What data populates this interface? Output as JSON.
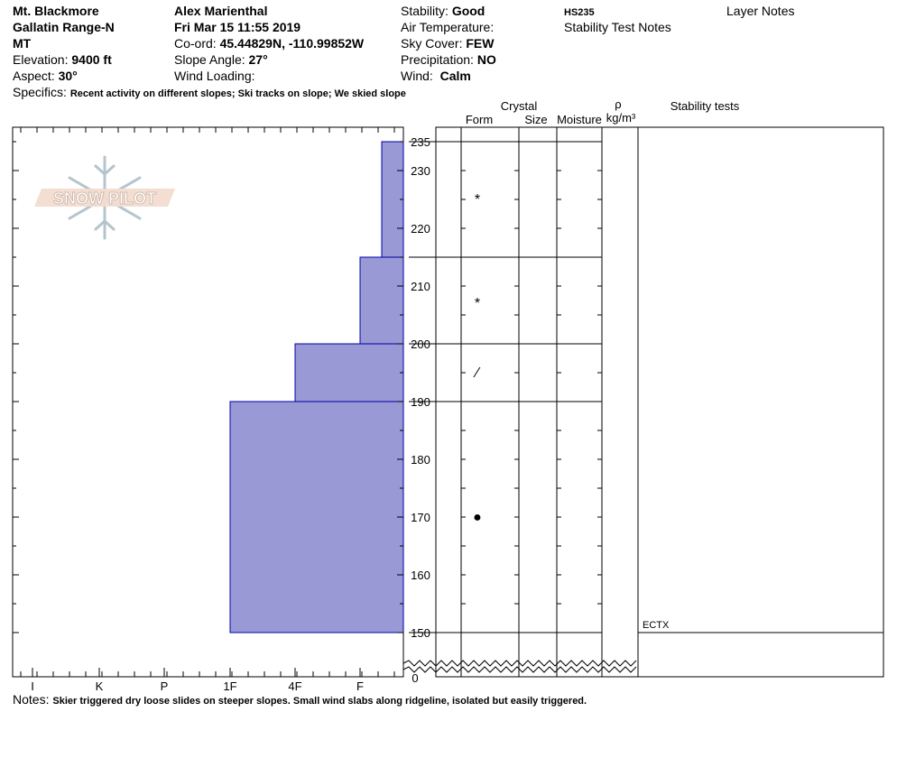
{
  "header": {
    "location": "Mt. Blackmore",
    "range": "Gallatin Range-N",
    "state": "MT",
    "elevation_label": "Elevation:",
    "elevation_value": "9400 ft",
    "aspect_label": "Aspect:",
    "aspect_value": "30°",
    "observer": "Alex Marienthal",
    "datetime": "Fri Mar 15 11:55 2019",
    "coord_label": "Co-ord:",
    "coord_value": "45.44829N, -110.99852W",
    "slope_label": "Slope Angle:",
    "slope_value": "27°",
    "wind_loading_label": "Wind Loading:",
    "stability_label": "Stability:",
    "stability_value": "Good",
    "air_temp_label": "Air Temperature:",
    "sky_label": "Sky Cover:",
    "sky_value": "FEW",
    "precip_label": "Precipitation:",
    "precip_value": "NO",
    "wind_label": "Wind:",
    "wind_value": "Calm",
    "hs": "HS235",
    "stability_test_notes": "Stability Test Notes",
    "layer_notes": "Layer Notes",
    "specifics_label": "Specifics:",
    "specifics_value": "Recent activity on different slopes; Ski tracks on slope; We skied slope",
    "notes_label": "Notes:",
    "notes_value": "Skier triggered dry loose slides on steeper slopes. Small wind slabs along ridgeline, isolated but easily triggered."
  },
  "logo_text": "SNOW PILOT",
  "columns": {
    "crystal": "Crystal",
    "form": "Form",
    "size": "Size",
    "moisture": "Moisture",
    "rho": "ρ",
    "density_unit": "kg/m³",
    "stability_tests": "Stability tests"
  },
  "chart_data": {
    "type": "bar",
    "title": "",
    "ylabel": "",
    "xlabel": "",
    "ylim": [
      150,
      235
    ],
    "y_ticks": [
      150,
      160,
      170,
      180,
      190,
      200,
      210,
      220,
      230,
      235
    ],
    "y_zero_label": "0",
    "hardness_scale": [
      "I",
      "K",
      "P",
      "1F",
      "4F",
      "F"
    ],
    "layers": [
      {
        "bottom": 150,
        "top": 190,
        "hardness": "1F"
      },
      {
        "bottom": 190,
        "top": 200,
        "hardness": "4F"
      },
      {
        "bottom": 200,
        "top": 215,
        "hardness": "F"
      },
      {
        "bottom": 215,
        "top": 235,
        "hardness": "F-"
      }
    ],
    "layer_boundaries": [
      150,
      190,
      200,
      215,
      235
    ],
    "crystal_forms": [
      {
        "height": 225,
        "symbol": "*"
      },
      {
        "height": 207,
        "symbol": "*"
      },
      {
        "height": 195,
        "symbol": "⁄"
      },
      {
        "height": 170,
        "symbol": "●"
      }
    ],
    "stability_tests": [
      {
        "height": 150,
        "result": "ECTX"
      }
    ],
    "colors": {
      "layer_fill": "#9999d6",
      "layer_stroke": "#0000aa",
      "logo": "#b4c4cc"
    }
  }
}
